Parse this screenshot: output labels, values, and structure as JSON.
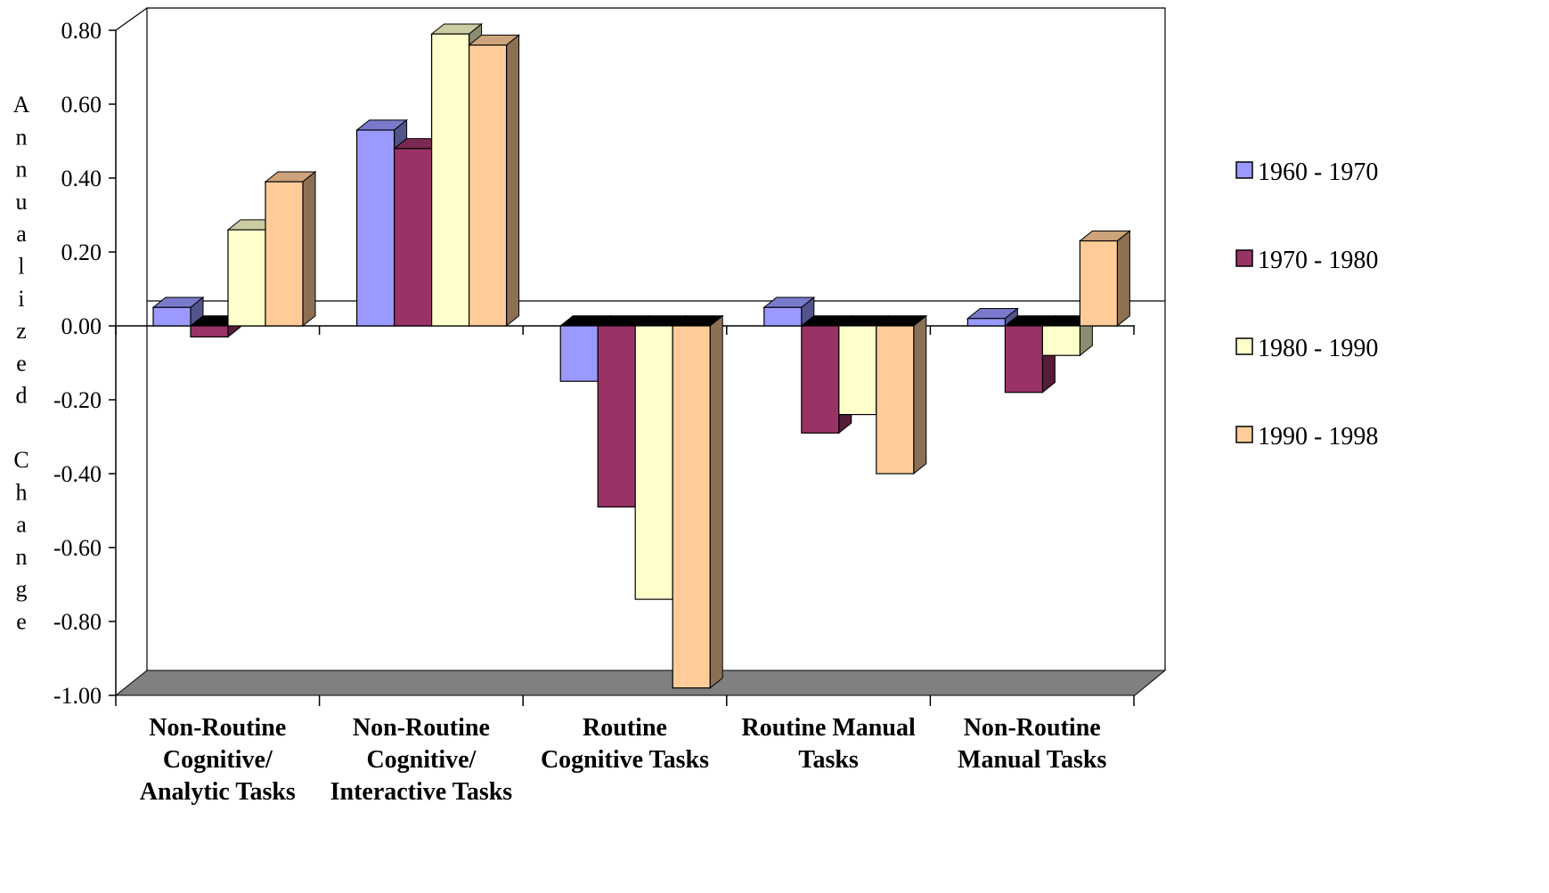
{
  "chart_data": {
    "type": "bar",
    "title": "",
    "xlabel": "",
    "ylabel": "Annualized Change",
    "categories": [
      [
        "Non-Routine",
        "Cognitive/",
        "Analytic Tasks"
      ],
      [
        "Non-Routine",
        "Cognitive/",
        "Interactive Tasks"
      ],
      [
        "Routine",
        "Cognitive Tasks"
      ],
      [
        "Routine Manual",
        "Tasks"
      ],
      [
        "Non-Routine",
        "Manual Tasks"
      ]
    ],
    "series": [
      {
        "name": "1960 - 1970",
        "color": "#9999ff",
        "values": [
          0.05,
          0.53,
          -0.15,
          0.05,
          0.02
        ]
      },
      {
        "name": "1970 - 1980",
        "color": "#993366",
        "values": [
          -0.03,
          0.48,
          -0.49,
          -0.29,
          -0.18
        ]
      },
      {
        "name": "1980 - 1990",
        "color": "#ffffcc",
        "values": [
          0.26,
          0.79,
          -0.74,
          -0.24,
          -0.08
        ]
      },
      {
        "name": "1990 - 1998",
        "color": "#ffcc99",
        "values": [
          0.39,
          0.76,
          -0.98,
          -0.4,
          0.23
        ]
      }
    ],
    "ylim": [
      -1.0,
      0.8
    ],
    "yticks": [
      "0.80",
      "0.60",
      "0.40",
      "0.20",
      "0.00",
      "-0.20",
      "-0.40",
      "-0.60",
      "-0.80",
      "-1.00"
    ],
    "grid": false,
    "legend": "right",
    "style": "3d-clustered-column"
  }
}
